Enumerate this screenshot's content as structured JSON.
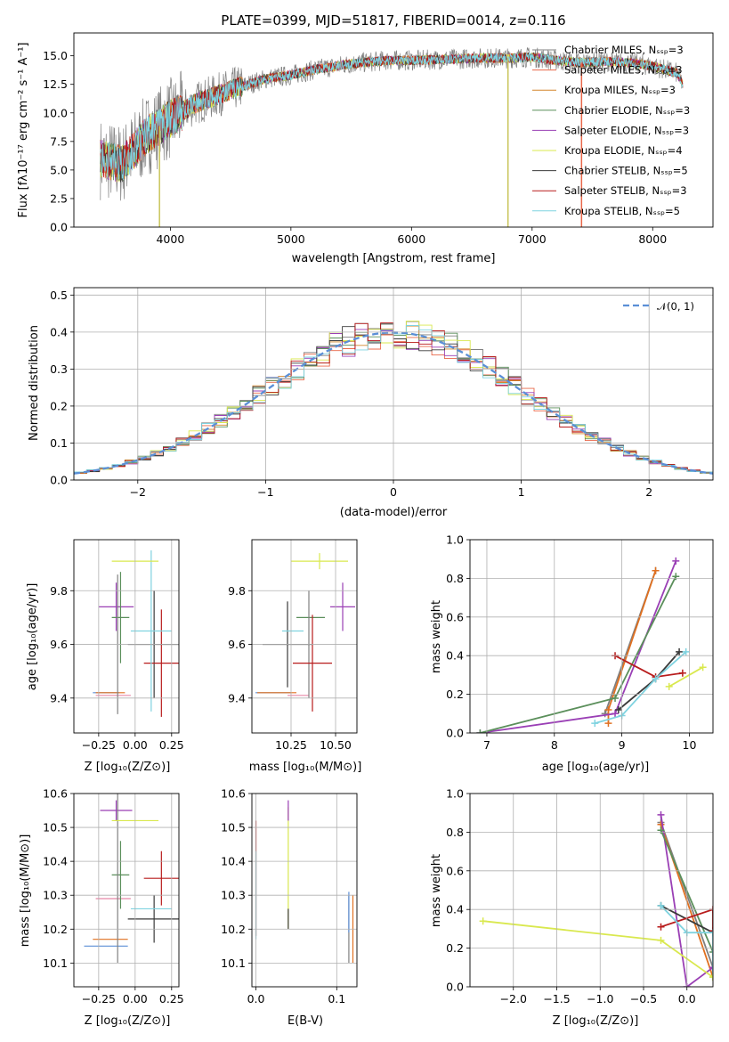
{
  "chart_data": [
    {
      "id": "spectrum",
      "type": "line",
      "title": "PLATE=0399, MJD=51817, FIBERID=0014, z=0.116",
      "xlabel": "wavelength [Angstrom, rest frame]",
      "ylabel": "Flux [fλ10⁻¹⁷ erg cm⁻² s⁻¹ A⁻¹]",
      "xlim": [
        3200,
        8500
      ],
      "ylim": [
        0,
        17
      ],
      "xticks": [
        "4000",
        "5000",
        "6000",
        "7000",
        "8000"
      ],
      "yticks": [
        "0.0",
        "2.5",
        "5.0",
        "7.5",
        "10.0",
        "12.5",
        "15.0"
      ],
      "grid": false,
      "legend_position": "top-right",
      "series": [
        {
          "name": "Chabrier MILES, Nₛₛₚ=3",
          "color": "#808080"
        },
        {
          "name": "Salpeter MILES, Nₛₛₚ=3",
          "color": "#e8684a"
        },
        {
          "name": "Kroupa MILES, Nₛₛₚ=3",
          "color": "#d4862a"
        },
        {
          "name": "Chabrier ELODIE, Nₛₛₚ=3",
          "color": "#5b8f5b"
        },
        {
          "name": "Salpeter ELODIE, Nₛₛₚ=3",
          "color": "#9a3fb5"
        },
        {
          "name": "Kroupa ELODIE, Nₛₛₚ=4",
          "color": "#d9e84e"
        },
        {
          "name": "Chabrier STELIB, Nₛₛₚ=5",
          "color": "#3a3a3a"
        },
        {
          "name": "Salpeter STELIB, Nₛₛₚ=3",
          "color": "#b81c1c"
        },
        {
          "name": "Kroupa STELIB, Nₛₛₚ=5",
          "color": "#7fd3e0"
        }
      ],
      "continuum": {
        "x": [
          3420,
          3600,
          3800,
          4000,
          4200,
          4500,
          4800,
          5000,
          5200,
          5500,
          5800,
          6000,
          6300,
          6600,
          6800,
          7000,
          7200,
          7400,
          7600,
          7800,
          8000,
          8200,
          8250
        ],
        "y": [
          6.0,
          5.5,
          8.0,
          9.5,
          10.8,
          12.0,
          13.0,
          13.3,
          13.8,
          14.3,
          14.6,
          14.6,
          14.7,
          14.8,
          14.8,
          14.9,
          14.6,
          14.4,
          14.5,
          14.4,
          14.1,
          13.5,
          12.5
        ]
      },
      "dropouts": [
        {
          "x": 3910,
          "color": "#c9c45a"
        },
        {
          "x": 6800,
          "color": "#c9c45a"
        },
        {
          "x": 7410,
          "color": "#e8684a"
        }
      ]
    },
    {
      "id": "residuals",
      "type": "line",
      "xlabel": "(data-model)/error",
      "ylabel": "Normed distribution",
      "xlim": [
        -2.5,
        2.5
      ],
      "ylim": [
        0,
        0.52
      ],
      "xticks": [
        "−2",
        "−1",
        "0",
        "1",
        "2"
      ],
      "yticks": [
        "0.0",
        "0.1",
        "0.2",
        "0.3",
        "0.4",
        "0.5"
      ],
      "grid": true,
      "legend_position": "top-right",
      "gaussian": {
        "name": "𝒩(0, 1)",
        "color": "#5b8fd6",
        "mean": 0,
        "sigma": 1
      }
    },
    {
      "id": "age-Z",
      "type": "scatter",
      "xlabel": "Z [log₁₀(Z/Z⊙)]",
      "ylabel": "age  [log₁₀(age/yr)]",
      "xlim": [
        -0.42,
        0.3
      ],
      "ylim": [
        9.27,
        9.99
      ],
      "xticks": [
        "−0.25",
        "0.00",
        "0.25"
      ],
      "yticks": [
        "9.4",
        "9.6",
        "9.8"
      ],
      "grid": true,
      "points": [
        {
          "x": -0.2,
          "xerr": 0.09,
          "y": 9.42,
          "yerr": 0.0,
          "color": "#5b8fd6"
        },
        {
          "x": -0.17,
          "xerr": 0.1,
          "y": 9.42,
          "yerr": 0.0,
          "color": "#e07020"
        },
        {
          "x": -0.15,
          "xerr": 0.12,
          "y": 9.41,
          "yerr": 0.0,
          "color": "#e888a8"
        },
        {
          "x": -0.13,
          "xerr": 0.12,
          "y": 9.74,
          "yerr": 0.09,
          "color": "#9a3fb5"
        },
        {
          "x": -0.1,
          "xerr": 0.06,
          "y": 9.7,
          "yerr": 0.17,
          "color": "#5b8f5b"
        },
        {
          "x": -0.12,
          "xerr": 0.0,
          "y": 9.6,
          "yerr": 0.26,
          "color": "#808080"
        },
        {
          "x": 0.13,
          "xerr": 0.18,
          "y": 9.6,
          "yerr": 0.2,
          "color": "#3a3a3a"
        },
        {
          "x": 0.18,
          "xerr": 0.12,
          "y": 9.53,
          "yerr": 0.2,
          "color": "#b81c1c"
        },
        {
          "x": 0.11,
          "xerr": 0.14,
          "y": 9.65,
          "yerr": 0.3,
          "color": "#7fd3e0"
        },
        {
          "x": 0.0,
          "xerr": 0.16,
          "y": 9.91,
          "yerr": 0.0,
          "color": "#d9e84e"
        }
      ]
    },
    {
      "id": "age-mass",
      "type": "scatter",
      "xlabel": "mass [log₁₀(M/M⊙)]",
      "xlim": [
        10.03,
        10.62
      ],
      "ylim": [
        9.27,
        9.99
      ],
      "xticks": [
        "10.25",
        "10.50"
      ],
      "yticks": [
        "9.4",
        "9.6",
        "9.8"
      ],
      "grid": true,
      "points": [
        {
          "x": 10.15,
          "xerr": 0.1,
          "y": 9.42,
          "yerr": 0.0,
          "color": "#5b8fd6"
        },
        {
          "x": 10.17,
          "xerr": 0.11,
          "y": 9.42,
          "yerr": 0.0,
          "color": "#e07020"
        },
        {
          "x": 10.29,
          "xerr": 0.06,
          "y": 9.41,
          "yerr": 0.0,
          "color": "#e888a8"
        },
        {
          "x": 10.54,
          "xerr": 0.07,
          "y": 9.74,
          "yerr": 0.09,
          "color": "#9a3fb5"
        },
        {
          "x": 10.36,
          "xerr": 0.08,
          "y": 9.7,
          "yerr": 0.0,
          "color": "#5b8f5b"
        },
        {
          "x": 10.35,
          "xerr": 0.0,
          "y": 9.6,
          "yerr": 0.2,
          "color": "#808080"
        },
        {
          "x": 10.23,
          "xerr": 0.14,
          "y": 9.6,
          "yerr": 0.16,
          "color": "#3a3a3a"
        },
        {
          "x": 10.37,
          "xerr": 0.11,
          "y": 9.53,
          "yerr": 0.18,
          "color": "#b81c1c"
        },
        {
          "x": 10.26,
          "xerr": 0.06,
          "y": 9.65,
          "yerr": 0.0,
          "color": "#7fd3e0"
        },
        {
          "x": 10.41,
          "xerr": 0.16,
          "y": 9.91,
          "yerr": 0.03,
          "color": "#d9e84e"
        }
      ]
    },
    {
      "id": "weight-age",
      "type": "line",
      "xlabel": "age  [log₁₀(age/yr)]",
      "ylabel": "mass weight",
      "xlim": [
        6.75,
        10.35
      ],
      "ylim": [
        0,
        1
      ],
      "xticks": [
        "7",
        "8",
        "9",
        "10"
      ],
      "yticks": [
        "0.0",
        "0.2",
        "0.4",
        "0.6",
        "0.8",
        "1.0"
      ],
      "grid": true,
      "series": [
        {
          "color": "#808080",
          "points": [
            [
              8.75,
              0.1
            ],
            [
              9.5,
              0.84
            ]
          ]
        },
        {
          "color": "#e07020",
          "points": [
            [
              8.8,
              0.05
            ],
            [
              8.8,
              0.12
            ],
            [
              9.5,
              0.84
            ]
          ]
        },
        {
          "color": "#9a3fb5",
          "points": [
            [
              6.9,
              0.0
            ],
            [
              8.9,
              0.1
            ],
            [
              9.8,
              0.89
            ]
          ]
        },
        {
          "color": "#5b8f5b",
          "points": [
            [
              6.9,
              0.0
            ],
            [
              8.9,
              0.18
            ],
            [
              9.8,
              0.81
            ]
          ]
        },
        {
          "color": "#3a3a3a",
          "points": [
            [
              8.95,
              0.12
            ],
            [
              9.5,
              0.28
            ],
            [
              9.85,
              0.42
            ]
          ]
        },
        {
          "color": "#b81c1c",
          "points": [
            [
              8.9,
              0.4
            ],
            [
              9.5,
              0.29
            ],
            [
              9.9,
              0.31
            ]
          ]
        },
        {
          "color": "#7fd3e0",
          "points": [
            [
              8.6,
              0.05
            ],
            [
              9.0,
              0.09
            ],
            [
              9.5,
              0.28
            ],
            [
              9.95,
              0.42
            ]
          ]
        },
        {
          "color": "#d9e84e",
          "points": [
            [
              9.7,
              0.24
            ],
            [
              10.2,
              0.34
            ]
          ]
        }
      ]
    },
    {
      "id": "mass-Z",
      "type": "scatter",
      "xlabel": "Z [log₁₀(Z/Z⊙)]",
      "ylabel": "mass [log₁₀(M/M⊙)]",
      "xlim": [
        -0.42,
        0.3
      ],
      "ylim": [
        10.03,
        10.6
      ],
      "xticks": [
        "−0.25",
        "0.00",
        "0.25"
      ],
      "yticks": [
        "10.1",
        "10.2",
        "10.3",
        "10.4",
        "10.5",
        "10.6"
      ],
      "grid": true,
      "points": [
        {
          "x": -0.2,
          "xerr": 0.15,
          "y": 10.15,
          "yerr": 0.0,
          "color": "#5b8fd6"
        },
        {
          "x": -0.17,
          "xerr": 0.12,
          "y": 10.17,
          "yerr": 0.0,
          "color": "#e07020"
        },
        {
          "x": -0.15,
          "xerr": 0.12,
          "y": 10.29,
          "yerr": 0.0,
          "color": "#e888a8"
        },
        {
          "x": -0.13,
          "xerr": 0.11,
          "y": 10.55,
          "yerr": 0.03,
          "color": "#9a3fb5"
        },
        {
          "x": -0.1,
          "xerr": 0.06,
          "y": 10.36,
          "yerr": 0.1,
          "color": "#5b8f5b"
        },
        {
          "x": -0.12,
          "xerr": 0.0,
          "y": 10.35,
          "yerr": 0.25,
          "color": "#808080"
        },
        {
          "x": 0.13,
          "xerr": 0.18,
          "y": 10.23,
          "yerr": 0.07,
          "color": "#3a3a3a"
        },
        {
          "x": 0.18,
          "xerr": 0.12,
          "y": 10.35,
          "yerr": 0.08,
          "color": "#b81c1c"
        },
        {
          "x": 0.11,
          "xerr": 0.14,
          "y": 10.26,
          "yerr": 0.0,
          "color": "#7fd3e0"
        },
        {
          "x": 0.0,
          "xerr": 0.16,
          "y": 10.52,
          "yerr": 0.0,
          "color": "#d9e84e"
        }
      ]
    },
    {
      "id": "mass-ebv",
      "type": "scatter",
      "xlabel": "E(B-V)",
      "xlim": [
        -0.005,
        0.125
      ],
      "ylim": [
        10.03,
        10.6
      ],
      "xticks": [
        "0.0",
        "0.1"
      ],
      "yticks": [
        "10.1",
        "10.2",
        "10.3",
        "10.4",
        "10.5",
        "10.6"
      ],
      "grid": true,
      "points": [
        {
          "x": 0.0,
          "y": 10.35,
          "yerr": 0.17,
          "color": "#b81c1c"
        },
        {
          "x": 0.0,
          "y": 10.3,
          "yerr": 0.13,
          "color": "#7fd3e0"
        },
        {
          "x": 0.04,
          "y": 10.38,
          "yerr": 0.18,
          "color": "#d9e84e"
        },
        {
          "x": 0.04,
          "y": 10.55,
          "yerr": 0.03,
          "color": "#9a3fb5"
        },
        {
          "x": 0.04,
          "y": 10.23,
          "yerr": 0.03,
          "color": "#3a3a3a"
        },
        {
          "x": 0.115,
          "y": 10.2,
          "yerr": 0.1,
          "color": "#808080"
        },
        {
          "x": 0.115,
          "y": 10.25,
          "yerr": 0.06,
          "color": "#5b8fd6"
        },
        {
          "x": 0.12,
          "y": 10.2,
          "yerr": 0.1,
          "color": "#e07020"
        }
      ]
    },
    {
      "id": "weight-Z",
      "type": "line",
      "xlabel": "Z [log₁₀(Z/Z⊙)]",
      "ylabel": "mass weight",
      "xlim": [
        -2.5,
        0.3
      ],
      "ylim": [
        0,
        1
      ],
      "xticks": [
        "−2.0",
        "−1.5",
        "−1.0",
        "−0.5",
        "0.0"
      ],
      "yticks": [
        "0.0",
        "0.2",
        "0.4",
        "0.6",
        "0.8",
        "1.0"
      ],
      "grid": true,
      "series": [
        {
          "color": "#808080",
          "points": [
            [
              -0.3,
              0.85
            ],
            [
              0.3,
              0.1
            ]
          ]
        },
        {
          "color": "#e07020",
          "points": [
            [
              -0.3,
              0.84
            ],
            [
              0.3,
              0.05
            ]
          ]
        },
        {
          "color": "#9a3fb5",
          "points": [
            [
              -0.3,
              0.89
            ],
            [
              0.0,
              0.0
            ],
            [
              0.3,
              0.1
            ]
          ]
        },
        {
          "color": "#5b8f5b",
          "points": [
            [
              -0.3,
              0.81
            ],
            [
              0.3,
              0.18
            ]
          ]
        },
        {
          "color": "#3a3a3a",
          "points": [
            [
              -0.3,
              0.42
            ],
            [
              0.3,
              0.28
            ]
          ]
        },
        {
          "color": "#b81c1c",
          "points": [
            [
              -0.3,
              0.31
            ],
            [
              0.3,
              0.4
            ],
            [
              0.3,
              0.29
            ]
          ]
        },
        {
          "color": "#7fd3e0",
          "points": [
            [
              -0.3,
              0.42
            ],
            [
              0.0,
              0.28
            ],
            [
              0.3,
              0.28
            ],
            [
              0.3,
              0.05
            ]
          ]
        },
        {
          "color": "#d9e84e",
          "points": [
            [
              -2.35,
              0.34
            ],
            [
              -0.3,
              0.24
            ],
            [
              0.3,
              0.05
            ]
          ]
        }
      ]
    }
  ]
}
